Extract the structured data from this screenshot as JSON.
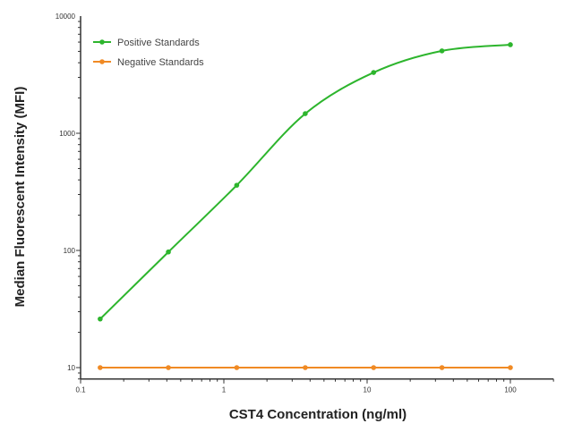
{
  "chart_data": {
    "type": "line",
    "title": "",
    "xlabel": "CST4 Concentration (ng/ml)",
    "ylabel": "Median  Fluorescent Intensity  (MFI)",
    "x_scale": "log",
    "y_scale": "log",
    "xlim": [
      0.1,
      200
    ],
    "ylim": [
      8,
      10000
    ],
    "x_ticks": [
      "0.1",
      "1",
      "10",
      "100"
    ],
    "y_ticks": [
      "10",
      "100",
      "1000",
      "10000"
    ],
    "grid": false,
    "legend_position": "top-left",
    "x": [
      0.137,
      0.41,
      1.23,
      3.7,
      11.1,
      33.3,
      100
    ],
    "series": [
      {
        "name": "Positive Standards",
        "color": "#2db52d",
        "values": [
          26,
          97,
          360,
          1470,
          3300,
          5050,
          5700
        ],
        "fit": "smooth curve"
      },
      {
        "name": "Negative Standards",
        "color": "#f08a24",
        "values": [
          10,
          10,
          10,
          10,
          10,
          10,
          10
        ],
        "fit": "line"
      }
    ]
  }
}
